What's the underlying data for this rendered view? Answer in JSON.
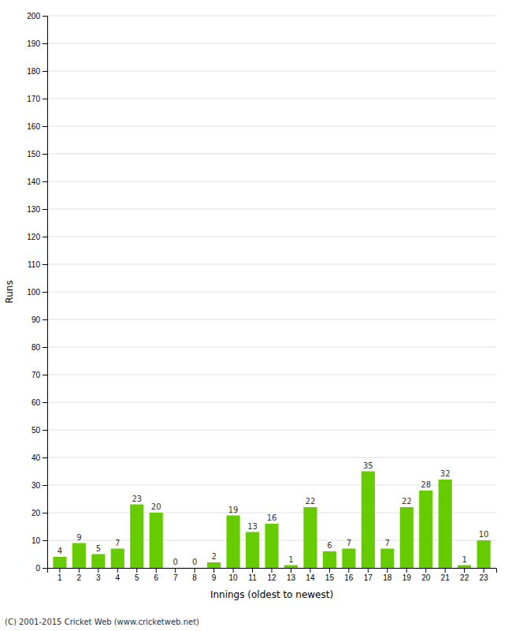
{
  "chart_data": {
    "type": "bar",
    "xlabel": "Innings (oldest to newest)",
    "ylabel": "Runs",
    "categories": [
      1,
      2,
      3,
      4,
      5,
      6,
      7,
      8,
      9,
      10,
      11,
      12,
      13,
      14,
      15,
      16,
      17,
      18,
      19,
      20,
      21,
      22,
      23
    ],
    "values": [
      4,
      9,
      5,
      7,
      23,
      20,
      0,
      0,
      2,
      19,
      13,
      16,
      1,
      22,
      6,
      7,
      35,
      7,
      22,
      28,
      32,
      1,
      10
    ],
    "color": "#66cc00",
    "ylim": [
      0,
      200
    ],
    "yticks": [
      0,
      10,
      20,
      30,
      40,
      50,
      60,
      70,
      80,
      90,
      100,
      110,
      120,
      130,
      140,
      150,
      160,
      170,
      180,
      190,
      200
    ],
    "grid": true,
    "data_labels": true,
    "annotations": [
      "(C) 2001-2015 Cricket Web (www.cricketweb.net)"
    ]
  }
}
